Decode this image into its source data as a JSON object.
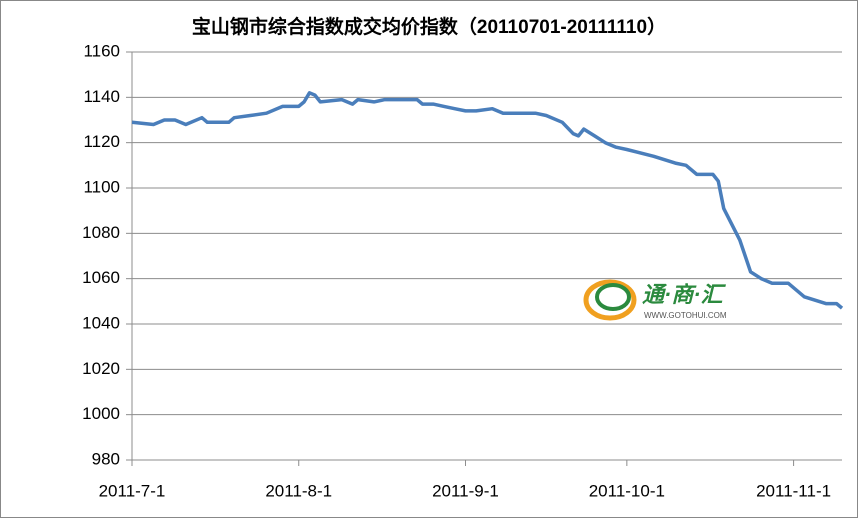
{
  "chart_data": {
    "type": "line",
    "title": "宝山钢市综合指数成交均价指数（20110701-20111110）",
    "watermark": "通·商·汇",
    "watermark_url": "WWW.GOTOHUI.COM",
    "x": [
      "2011-7-1",
      "2011-7-5",
      "2011-7-7",
      "2011-7-9",
      "2011-7-11",
      "2011-7-14",
      "2011-7-15",
      "2011-7-19",
      "2011-7-20",
      "2011-7-23",
      "2011-7-26",
      "2011-7-29",
      "2011-8-1",
      "2011-8-2",
      "2011-8-3",
      "2011-8-4",
      "2011-8-5",
      "2011-8-9",
      "2011-8-11",
      "2011-8-12",
      "2011-8-15",
      "2011-8-17",
      "2011-8-23",
      "2011-8-24",
      "2011-8-26",
      "2011-8-28",
      "2011-8-30",
      "2011-9-1",
      "2011-9-3",
      "2011-9-6",
      "2011-9-8",
      "2011-9-14",
      "2011-9-16",
      "2011-9-19",
      "2011-9-21",
      "2011-9-22",
      "2011-9-23",
      "2011-9-25",
      "2011-9-27",
      "2011-9-29",
      "2011-10-1",
      "2011-10-6",
      "2011-10-10",
      "2011-10-12",
      "2011-10-14",
      "2011-10-17",
      "2011-10-18",
      "2011-10-19",
      "2011-10-22",
      "2011-10-24",
      "2011-10-26",
      "2011-10-28",
      "2011-10-31",
      "2011-11-2",
      "2011-11-3",
      "2011-11-7",
      "2011-11-9",
      "2011-11-10"
    ],
    "series": [
      {
        "name": "宝山钢市综合指数",
        "color": "#4a7ebb",
        "values": [
          1129,
          1128,
          1130,
          1130,
          1128,
          1131,
          1129,
          1129,
          1131,
          1132,
          1133,
          1136,
          1136,
          1138,
          1142,
          1141,
          1138,
          1139,
          1137,
          1139,
          1138,
          1139,
          1139,
          1137,
          1137,
          1136,
          1135,
          1134,
          1134,
          1135,
          1133,
          1133,
          1132,
          1129,
          1124,
          1123,
          1126,
          1123,
          1120,
          1118,
          1117,
          1114,
          1111,
          1110,
          1106,
          1106,
          1103,
          1091,
          1077,
          1063,
          1060,
          1058,
          1058,
          1054,
          1052,
          1049,
          1049,
          1047
        ]
      }
    ],
    "xlim": [
      "2011-7-1",
      "2011-11-10"
    ],
    "xticks": [
      "2011-7-1",
      "2011-8-1",
      "2011-9-1",
      "2011-10-1",
      "2011-11-1"
    ],
    "ylim": [
      980,
      1160
    ],
    "yticks": [
      980,
      1000,
      1020,
      1040,
      1060,
      1080,
      1100,
      1120,
      1140,
      1160
    ],
    "grid": true
  }
}
